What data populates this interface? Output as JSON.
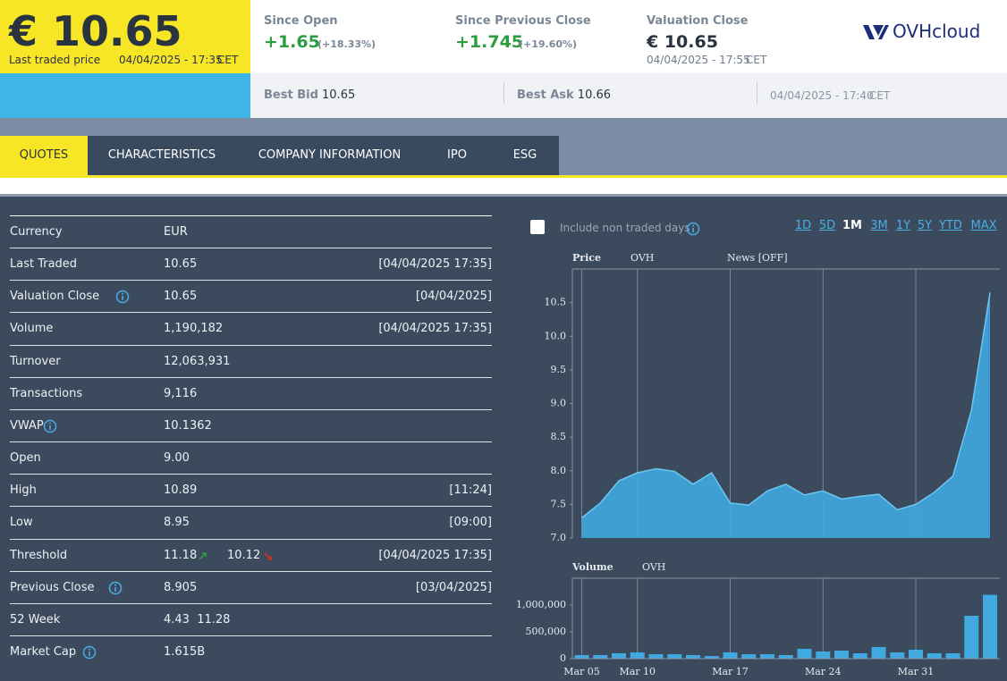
{
  "header": {
    "price": "€ 10.65",
    "price_label": "Last traded price",
    "price_time": "04/04/2025 - 17:35",
    "price_tz": "CET",
    "stats": [
      {
        "label": "Since Open",
        "value": "+1.65",
        "change": "(+18.33%)"
      },
      {
        "label": "Since Previous Close",
        "value": "+1.745",
        "change": "(+19.60%)"
      },
      {
        "label": "Valuation Close",
        "value": "€ 10.65",
        "time": "04/04/2025 - 17:55",
        "tz": "CET"
      }
    ],
    "logo": "OVHcloud",
    "bid_label": "Best Bid",
    "bid": "10.65",
    "ask_label": "Best Ask",
    "ask": "10.66",
    "quote_time": "04/04/2025 - 17:40",
    "quote_tz": "CET"
  },
  "tabs": [
    "QUOTES",
    "CHARACTERISTICS",
    "COMPANY INFORMATION",
    "IPO",
    "ESG"
  ],
  "active_tab": 0,
  "table": {
    "rows": [
      {
        "label": "Currency",
        "value": "EUR"
      },
      {
        "label": "Last Traded",
        "value": "10.65",
        "time": "[04/04/2025 17:35]"
      },
      {
        "label": "Valuation Close",
        "info": true,
        "value": "10.65",
        "time": "[04/04/2025]"
      },
      {
        "label": "Volume",
        "value": "1,190,182",
        "time": "[04/04/2025 17:35]"
      },
      {
        "label": "Turnover",
        "value": "12,063,931"
      },
      {
        "label": "Transactions",
        "value": "9,116"
      },
      {
        "label": "VWAP",
        "info": true,
        "value": "10.1362"
      },
      {
        "label": "Open",
        "value": "9.00"
      },
      {
        "label": "High",
        "value": "10.89",
        "time": "[11:24]"
      },
      {
        "label": "Low",
        "value": "8.95",
        "time": "[09:00]"
      },
      {
        "label": "Threshold",
        "value": "11.18",
        "value2": "10.12",
        "time": "[04/04/2025 17:35]"
      },
      {
        "label": "Previous Close",
        "info": true,
        "value": "8.905",
        "time": "[03/04/2025]"
      },
      {
        "label": "52 Week",
        "value": "4.43  11.28"
      },
      {
        "label": "Market Cap",
        "info": true,
        "value": "1.615B"
      }
    ]
  },
  "controls": {
    "checkbox": "Include non traded days",
    "ranges": [
      "1D",
      "5D",
      "1M",
      "3M",
      "1Y",
      "5Y",
      "YTD",
      "MAX"
    ],
    "active_range": 2
  },
  "chart_data": [
    {
      "type": "area",
      "title": "Price",
      "annotation": "News [OFF]",
      "series": [
        {
          "name": "OVH",
          "color": "#3fa9e0",
          "values": [
            7.3,
            7.52,
            7.85,
            7.97,
            8.03,
            7.99,
            7.8,
            7.97,
            7.52,
            7.49,
            7.7,
            7.8,
            7.64,
            7.7,
            7.58,
            7.62,
            7.65,
            7.42,
            7.5,
            7.68,
            7.92,
            8.9,
            10.65
          ]
        }
      ],
      "ylim": [
        7,
        11
      ],
      "yticks": [
        {
          "value": 7,
          "label": "7.0"
        },
        7.5,
        {
          "value": 8,
          "label": "8.0"
        },
        8.5,
        {
          "value": 9,
          "label": "9.0"
        },
        9.5,
        {
          "value": 10,
          "label": "10.0"
        },
        10.5
      ],
      "grid": true
    },
    {
      "type": "bar",
      "title": "Volume",
      "categories": [
        "Mar 05",
        null,
        null,
        "Mar 10",
        null,
        null,
        null,
        null,
        "Mar 17",
        null,
        null,
        null,
        null,
        "Mar 24",
        null,
        null,
        null,
        null,
        "Mar 31",
        null,
        null,
        null,
        null
      ],
      "series": [
        {
          "name": "OVH",
          "color": "#3fa9e0",
          "values": [
            67000,
            67000,
            100000,
            117000,
            83000,
            83000,
            67000,
            50000,
            117000,
            83000,
            83000,
            67000,
            183000,
            133000,
            150000,
            100000,
            217000,
            117000,
            167000,
            100000,
            100000,
            800000,
            1190182
          ]
        }
      ],
      "ylim": [
        0,
        1500000
      ],
      "yticks": [
        0,
        {
          "value": 500000,
          "label": "500,000"
        },
        {
          "value": 1000000,
          "label": "1,000,000"
        }
      ],
      "grid": true
    }
  ]
}
